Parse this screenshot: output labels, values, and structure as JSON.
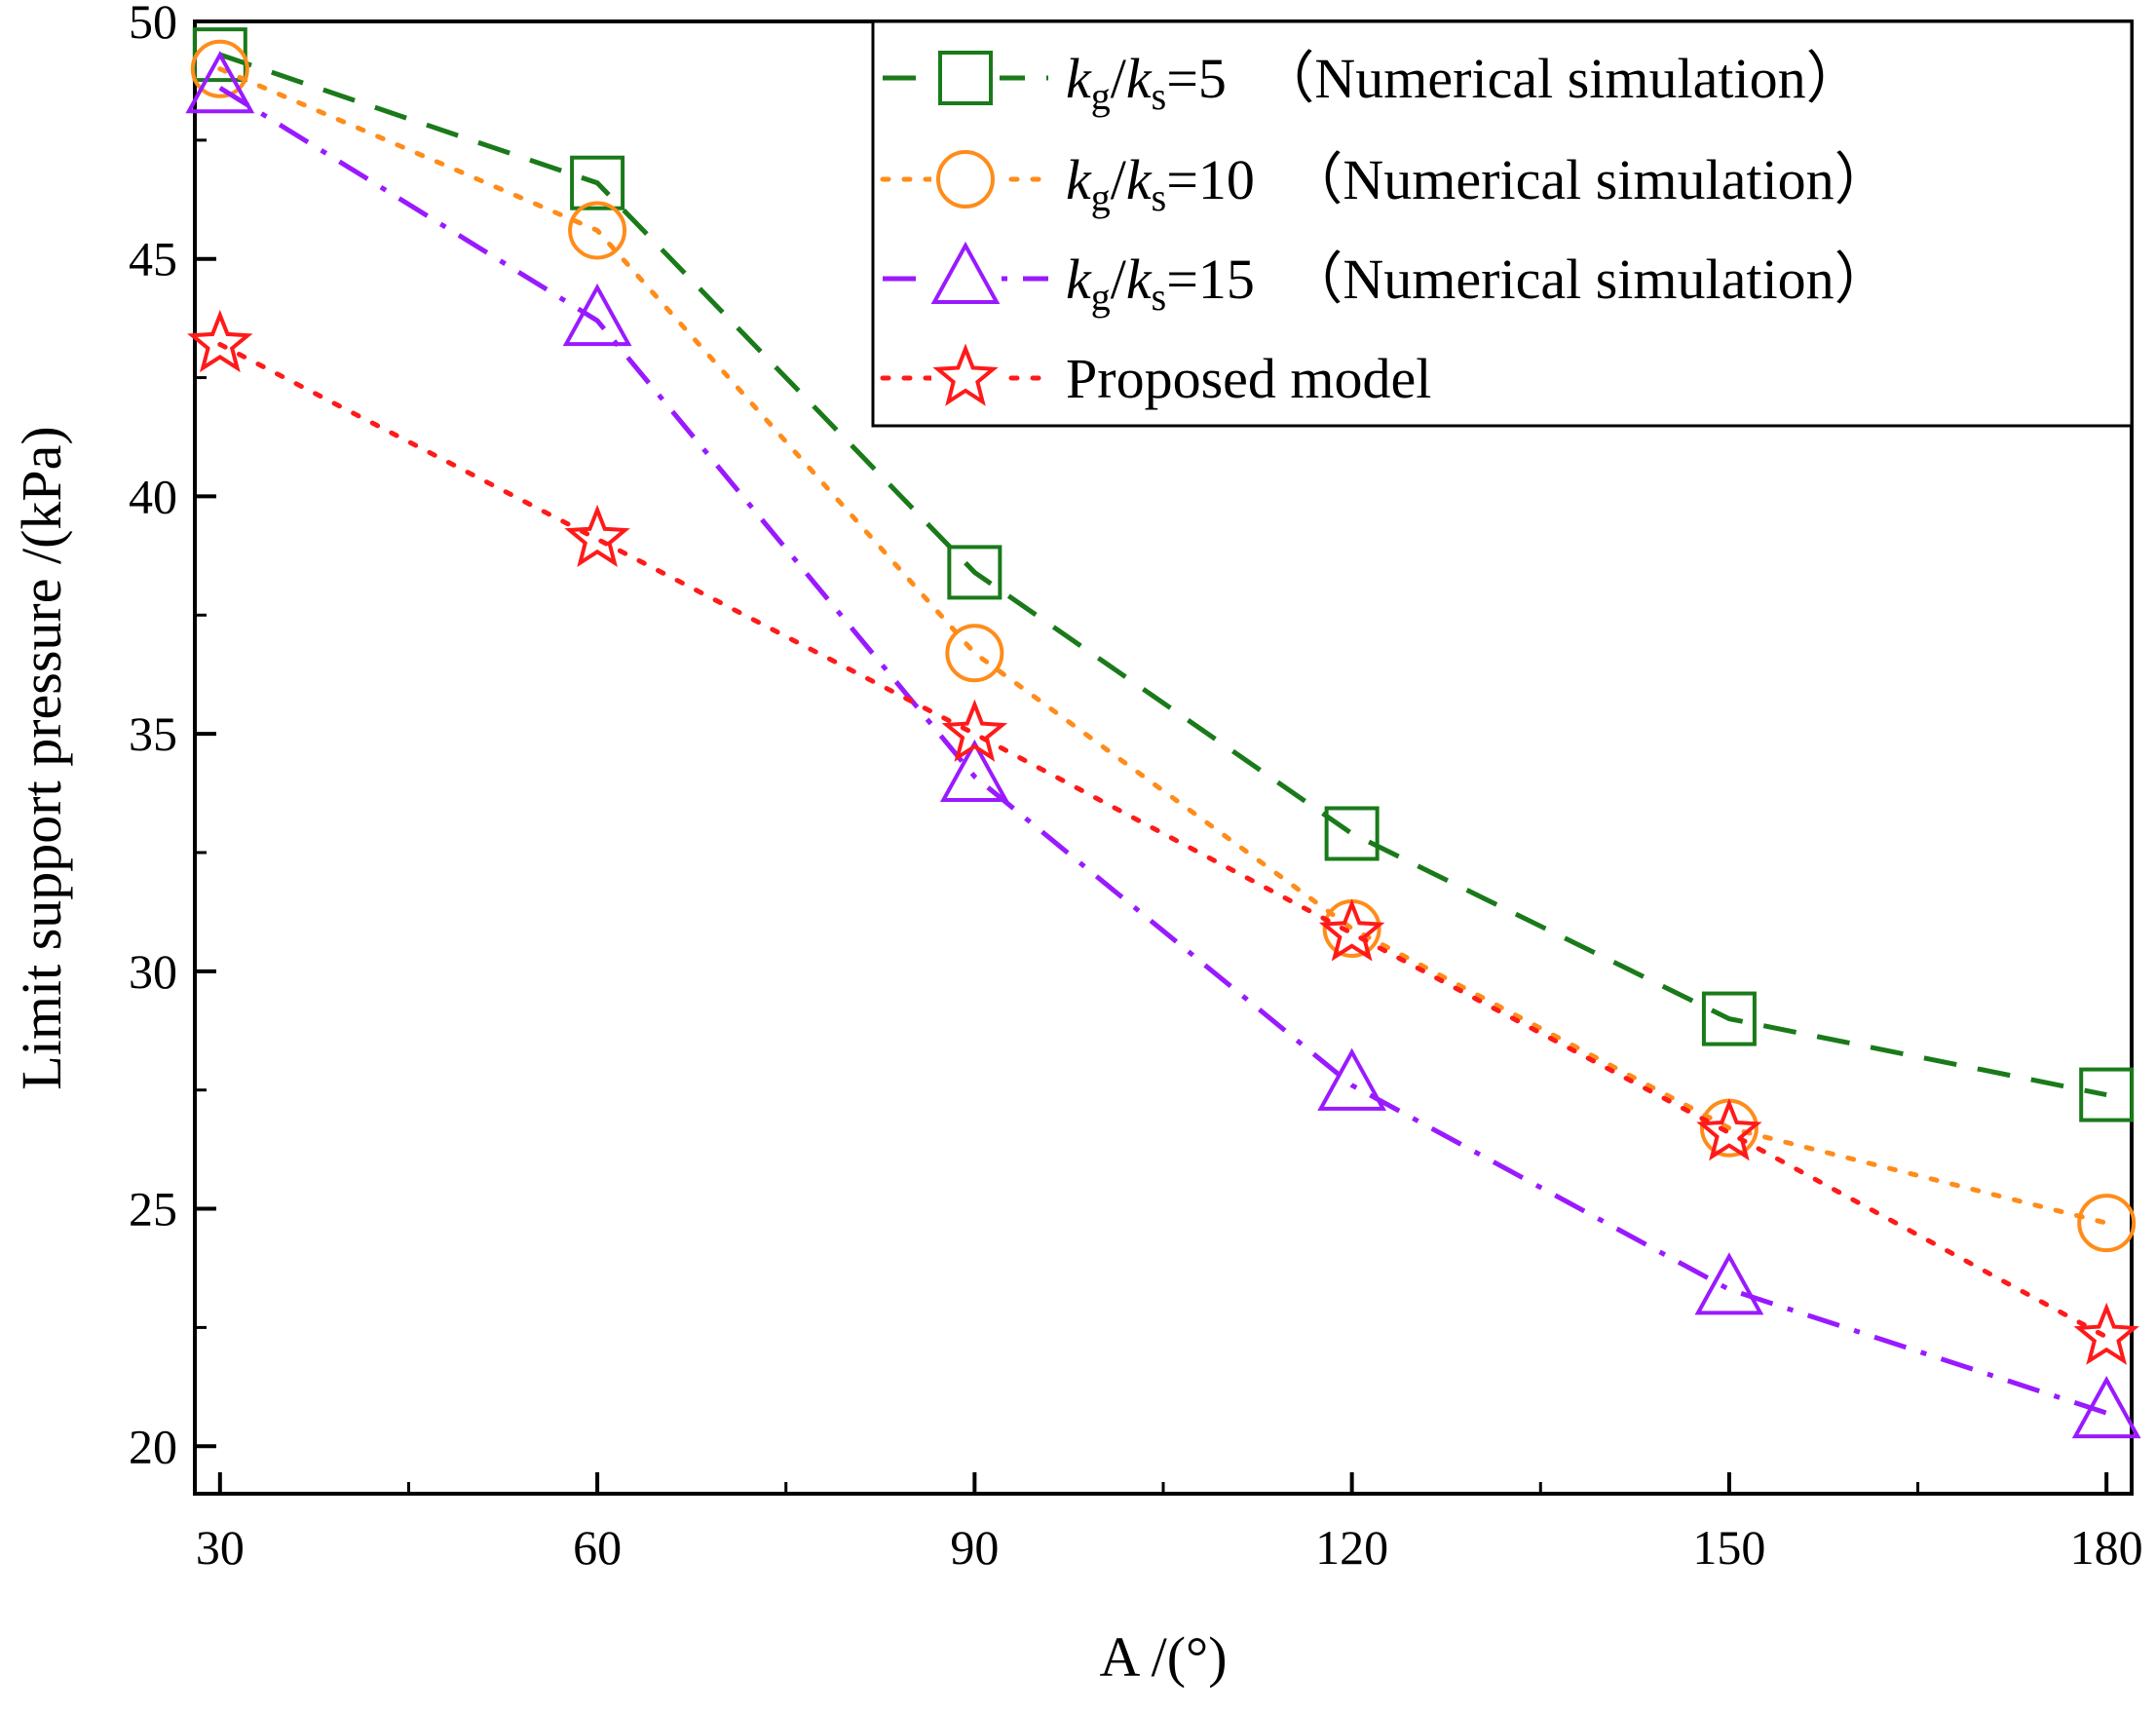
{
  "chart_data": {
    "type": "line",
    "xlabel": "A /(°)",
    "ylabel": "Limit support pressure /(kPa)",
    "xlim": [
      28,
      182
    ],
    "ylim": [
      19,
      50
    ],
    "xticks": [
      30,
      60,
      90,
      120,
      150,
      180
    ],
    "xtick_labels": [
      "30",
      "60",
      "90",
      "120",
      "150",
      "180"
    ],
    "yticks": [
      20,
      25,
      30,
      35,
      40,
      45,
      50
    ],
    "ytick_labels": [
      "20",
      "25",
      "30",
      "35",
      "40",
      "45",
      "50"
    ],
    "x": [
      30,
      60,
      90,
      120,
      150,
      180
    ],
    "legend_position": "top-right",
    "series": [
      {
        "name": "kg/ks=5 (Numerical simulation)",
        "legend_italic_a": "k",
        "legend_sub_a": "g",
        "legend_slash": "/",
        "legend_italic_b": "k",
        "legend_sub_b": "s",
        "legend_value": "=5",
        "legend_note": "（Numerical simulation）",
        "color": "#1a7a1a",
        "marker": "square",
        "line_style": "dashed",
        "values": [
          49.3,
          46.6,
          38.4,
          32.9,
          29.0,
          27.4
        ]
      },
      {
        "name": "kg/ks=10 (Numerical simulation)",
        "legend_italic_a": "k",
        "legend_sub_a": "g",
        "legend_slash": "/",
        "legend_italic_b": "k",
        "legend_sub_b": "s",
        "legend_value": "=10",
        "legend_note": "（Numerical simulation）",
        "color": "#ff8c1a",
        "marker": "circle",
        "line_style": "dotted",
        "values": [
          49.0,
          45.6,
          36.7,
          30.9,
          26.7,
          24.7
        ]
      },
      {
        "name": "kg/ks=15 (Numerical simulation)",
        "legend_italic_a": "k",
        "legend_sub_a": "g",
        "legend_slash": "/",
        "legend_italic_b": "k",
        "legend_sub_b": "s",
        "legend_value": "=15",
        "legend_note": "（Numerical simulation）",
        "color": "#9a1aff",
        "marker": "triangle",
        "line_style": "dashdot",
        "values": [
          48.6,
          43.7,
          34.1,
          27.6,
          23.3,
          20.7
        ]
      },
      {
        "name": "Proposed model",
        "legend_text": "Proposed model",
        "color": "#ff1a1a",
        "marker": "star",
        "line_style": "dotted",
        "values": [
          43.2,
          39.1,
          35.0,
          30.8,
          26.6,
          22.3
        ]
      }
    ]
  }
}
